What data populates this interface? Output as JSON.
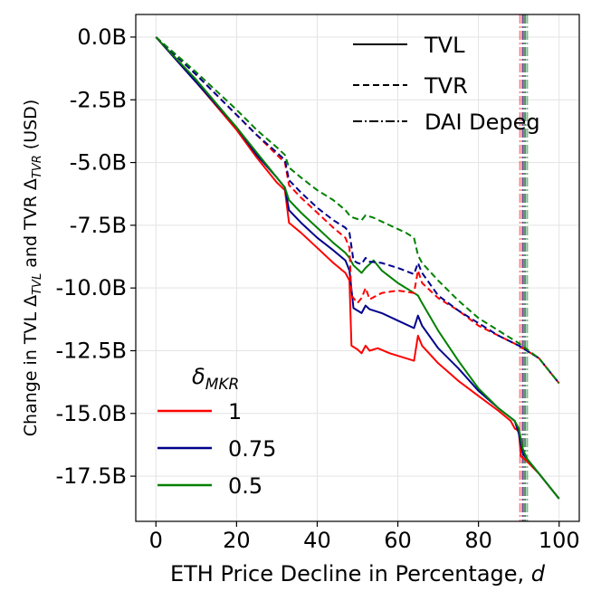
{
  "chart_data": {
    "type": "line",
    "title": "",
    "xlabel": "ETH Price Decline in Percentage, d",
    "xlabel_main": "ETH Price Decline in Percentage, ",
    "xlabel_var": "d",
    "ylabel": "Change in TVL Δ_TVL and TVR Δ_TVR (USD)",
    "ylabel_parts": {
      "p1": "Change in TVL ",
      "delta1": "Δ",
      "sub1": "TVL",
      "p2": " and TVR ",
      "delta2": "Δ",
      "sub2": "TVR",
      "p3": " (USD)"
    },
    "xlim": [
      -5,
      105
    ],
    "ylim": [
      -19.3,
      0.9
    ],
    "x_ticks": [
      {
        "value": 0,
        "label": "0"
      },
      {
        "value": 20,
        "label": "20"
      },
      {
        "value": 40,
        "label": "40"
      },
      {
        "value": 60,
        "label": "60"
      },
      {
        "value": 80,
        "label": "80"
      },
      {
        "value": 100,
        "label": "100"
      }
    ],
    "y_ticks": [
      {
        "value": 0,
        "label": "0.0B"
      },
      {
        "value": -2.5,
        "label": "-2.5B"
      },
      {
        "value": -5,
        "label": "-5.0B"
      },
      {
        "value": -7.5,
        "label": "-7.5B"
      },
      {
        "value": -10,
        "label": "-10.0B"
      },
      {
        "value": -12.5,
        "label": "-12.5B"
      },
      {
        "value": -15,
        "label": "-15.0B"
      },
      {
        "value": -17.5,
        "label": "-17.5B"
      }
    ],
    "grid": true,
    "colors": {
      "1": "#ff0000",
      "0.75": "#00008b",
      "0.5": "#008000"
    },
    "series": [
      {
        "name": "TVL δ=1",
        "delta": "1",
        "metric": "TVL",
        "style": "solid",
        "points": [
          [
            0,
            0
          ],
          [
            10,
            -1.8
          ],
          [
            20,
            -3.7
          ],
          [
            25,
            -4.8
          ],
          [
            30,
            -5.8
          ],
          [
            32,
            -6.1
          ],
          [
            33,
            -7.4
          ],
          [
            36,
            -7.8
          ],
          [
            40,
            -8.4
          ],
          [
            44,
            -9.0
          ],
          [
            47,
            -9.4
          ],
          [
            48,
            -9.7
          ],
          [
            48.5,
            -12.3
          ],
          [
            50,
            -12.45
          ],
          [
            51,
            -12.6
          ],
          [
            52,
            -12.3
          ],
          [
            53,
            -12.5
          ],
          [
            55,
            -12.4
          ],
          [
            58,
            -12.6
          ],
          [
            62,
            -12.8
          ],
          [
            64,
            -12.9
          ],
          [
            65,
            -11.9
          ],
          [
            66,
            -12.3
          ],
          [
            70,
            -13.0
          ],
          [
            75,
            -13.7
          ],
          [
            80,
            -14.3
          ],
          [
            85,
            -14.9
          ],
          [
            88,
            -15.3
          ],
          [
            89,
            -15.6
          ],
          [
            90,
            -15.7
          ],
          [
            90.5,
            -16.7
          ],
          [
            92,
            -16.9
          ],
          [
            95,
            -17.4
          ],
          [
            100,
            -18.4
          ]
        ]
      },
      {
        "name": "TVL δ=0.75",
        "delta": "0.75",
        "metric": "TVL",
        "style": "solid",
        "points": [
          [
            0,
            0
          ],
          [
            10,
            -1.8
          ],
          [
            20,
            -3.6
          ],
          [
            25,
            -4.7
          ],
          [
            30,
            -5.6
          ],
          [
            32,
            -6.0
          ],
          [
            33,
            -6.9
          ],
          [
            36,
            -7.4
          ],
          [
            40,
            -8.0
          ],
          [
            44,
            -8.5
          ],
          [
            47,
            -8.9
          ],
          [
            48,
            -9.3
          ],
          [
            49,
            -10.8
          ],
          [
            50,
            -10.9
          ],
          [
            51,
            -11.0
          ],
          [
            52,
            -10.7
          ],
          [
            53,
            -10.85
          ],
          [
            56,
            -11.0
          ],
          [
            60,
            -11.3
          ],
          [
            64,
            -11.6
          ],
          [
            65,
            -11.1
          ],
          [
            66,
            -11.5
          ],
          [
            70,
            -12.4
          ],
          [
            75,
            -13.2
          ],
          [
            80,
            -14.1
          ],
          [
            85,
            -14.8
          ],
          [
            89,
            -15.3
          ],
          [
            90,
            -15.8
          ],
          [
            91,
            -16.6
          ],
          [
            92,
            -16.8
          ],
          [
            95,
            -17.4
          ],
          [
            100,
            -18.4
          ]
        ]
      },
      {
        "name": "TVL δ=0.5",
        "delta": "0.5",
        "metric": "TVL",
        "style": "solid",
        "points": [
          [
            0,
            0
          ],
          [
            10,
            -1.7
          ],
          [
            20,
            -3.6
          ],
          [
            25,
            -4.6
          ],
          [
            30,
            -5.6
          ],
          [
            32,
            -6.0
          ],
          [
            33,
            -6.5
          ],
          [
            36,
            -7.0
          ],
          [
            40,
            -7.6
          ],
          [
            44,
            -8.2
          ],
          [
            47,
            -8.6
          ],
          [
            48,
            -8.8
          ],
          [
            49,
            -9.1
          ],
          [
            51,
            -9.4
          ],
          [
            52,
            -9.2
          ],
          [
            54,
            -8.9
          ],
          [
            56,
            -9.3
          ],
          [
            60,
            -9.8
          ],
          [
            64,
            -10.2
          ],
          [
            65,
            -10.3
          ],
          [
            66,
            -10.6
          ],
          [
            70,
            -11.7
          ],
          [
            75,
            -12.9
          ],
          [
            80,
            -14.0
          ],
          [
            85,
            -14.8
          ],
          [
            89,
            -15.3
          ],
          [
            90,
            -15.6
          ],
          [
            91,
            -16.4
          ],
          [
            92,
            -16.8
          ],
          [
            95,
            -17.4
          ],
          [
            100,
            -18.4
          ]
        ]
      },
      {
        "name": "TVR δ=1",
        "delta": "1",
        "metric": "TVR",
        "style": "dashed",
        "points": [
          [
            0,
            0
          ],
          [
            10,
            -1.5
          ],
          [
            20,
            -3.1
          ],
          [
            25,
            -3.9
          ],
          [
            30,
            -4.7
          ],
          [
            32,
            -5.0
          ],
          [
            33,
            -5.9
          ],
          [
            36,
            -6.4
          ],
          [
            40,
            -7.0
          ],
          [
            44,
            -7.6
          ],
          [
            47,
            -8.0
          ],
          [
            48,
            -8.4
          ],
          [
            48.5,
            -10.3
          ],
          [
            50,
            -10.6
          ],
          [
            51,
            -10.4
          ],
          [
            52,
            -10.0
          ],
          [
            53,
            -10.45
          ],
          [
            56,
            -10.2
          ],
          [
            60,
            -10.1
          ],
          [
            64,
            -10.2
          ],
          [
            65,
            -9.3
          ],
          [
            66,
            -9.8
          ],
          [
            70,
            -10.4
          ],
          [
            75,
            -10.9
          ],
          [
            80,
            -11.5
          ],
          [
            85,
            -11.9
          ],
          [
            90,
            -12.3
          ],
          [
            95,
            -12.8
          ],
          [
            100,
            -13.8
          ]
        ]
      },
      {
        "name": "TVR δ=0.75",
        "delta": "0.75",
        "metric": "TVR",
        "style": "dashed",
        "points": [
          [
            0,
            0
          ],
          [
            10,
            -1.5
          ],
          [
            20,
            -3.1
          ],
          [
            25,
            -3.9
          ],
          [
            30,
            -4.6
          ],
          [
            32,
            -4.9
          ],
          [
            33,
            -5.7
          ],
          [
            36,
            -6.2
          ],
          [
            40,
            -6.8
          ],
          [
            44,
            -7.3
          ],
          [
            47,
            -7.6
          ],
          [
            48,
            -7.8
          ],
          [
            49,
            -8.9
          ],
          [
            50,
            -9.0
          ],
          [
            51,
            -9.05
          ],
          [
            52,
            -8.8
          ],
          [
            53,
            -8.95
          ],
          [
            56,
            -9.0
          ],
          [
            60,
            -9.2
          ],
          [
            64,
            -9.45
          ],
          [
            65,
            -9.0
          ],
          [
            66,
            -9.4
          ],
          [
            70,
            -10.3
          ],
          [
            75,
            -10.9
          ],
          [
            80,
            -11.4
          ],
          [
            85,
            -11.9
          ],
          [
            90,
            -12.3
          ],
          [
            95,
            -12.8
          ],
          [
            100,
            -13.8
          ]
        ]
      },
      {
        "name": "TVR δ=0.5",
        "delta": "0.5",
        "metric": "TVR",
        "style": "dashed",
        "points": [
          [
            0,
            0
          ],
          [
            10,
            -1.4
          ],
          [
            20,
            -2.9
          ],
          [
            25,
            -3.7
          ],
          [
            30,
            -4.4
          ],
          [
            32,
            -4.7
          ],
          [
            33,
            -5.2
          ],
          [
            36,
            -5.6
          ],
          [
            40,
            -6.1
          ],
          [
            44,
            -6.5
          ],
          [
            47,
            -6.9
          ],
          [
            48,
            -7.1
          ],
          [
            49,
            -7.2
          ],
          [
            51,
            -7.3
          ],
          [
            52,
            -7.1
          ],
          [
            54,
            -7.2
          ],
          [
            58,
            -7.5
          ],
          [
            62,
            -7.8
          ],
          [
            64,
            -8.0
          ],
          [
            65,
            -8.7
          ],
          [
            66,
            -9.0
          ],
          [
            70,
            -9.7
          ],
          [
            75,
            -10.5
          ],
          [
            80,
            -11.2
          ],
          [
            85,
            -11.7
          ],
          [
            90,
            -12.2
          ],
          [
            95,
            -12.8
          ],
          [
            100,
            -13.8
          ]
        ]
      }
    ],
    "depeg_lines": [
      {
        "delta": "1",
        "x": 90.3
      },
      {
        "delta": "1",
        "x": 91.1
      },
      {
        "delta": "0.75",
        "x": 90.9
      },
      {
        "delta": "0.75",
        "x": 91.6
      },
      {
        "delta": "0.5",
        "x": 91.4
      },
      {
        "delta": "0.5",
        "x": 92.1
      }
    ],
    "legend_styles": {
      "title": "",
      "position": "top-right",
      "entries": [
        {
          "label": "TVL",
          "style": "solid"
        },
        {
          "label": "TVR",
          "style": "dashed"
        },
        {
          "label": "DAI Depeg",
          "style": "dashdot"
        }
      ]
    },
    "legend_delta": {
      "title_main": "δ",
      "title_sub": "MKR",
      "position": "bottom-left",
      "entries": [
        {
          "label": "1",
          "delta": "1"
        },
        {
          "label": "0.75",
          "delta": "0.75"
        },
        {
          "label": "0.5",
          "delta": "0.5"
        }
      ]
    }
  }
}
